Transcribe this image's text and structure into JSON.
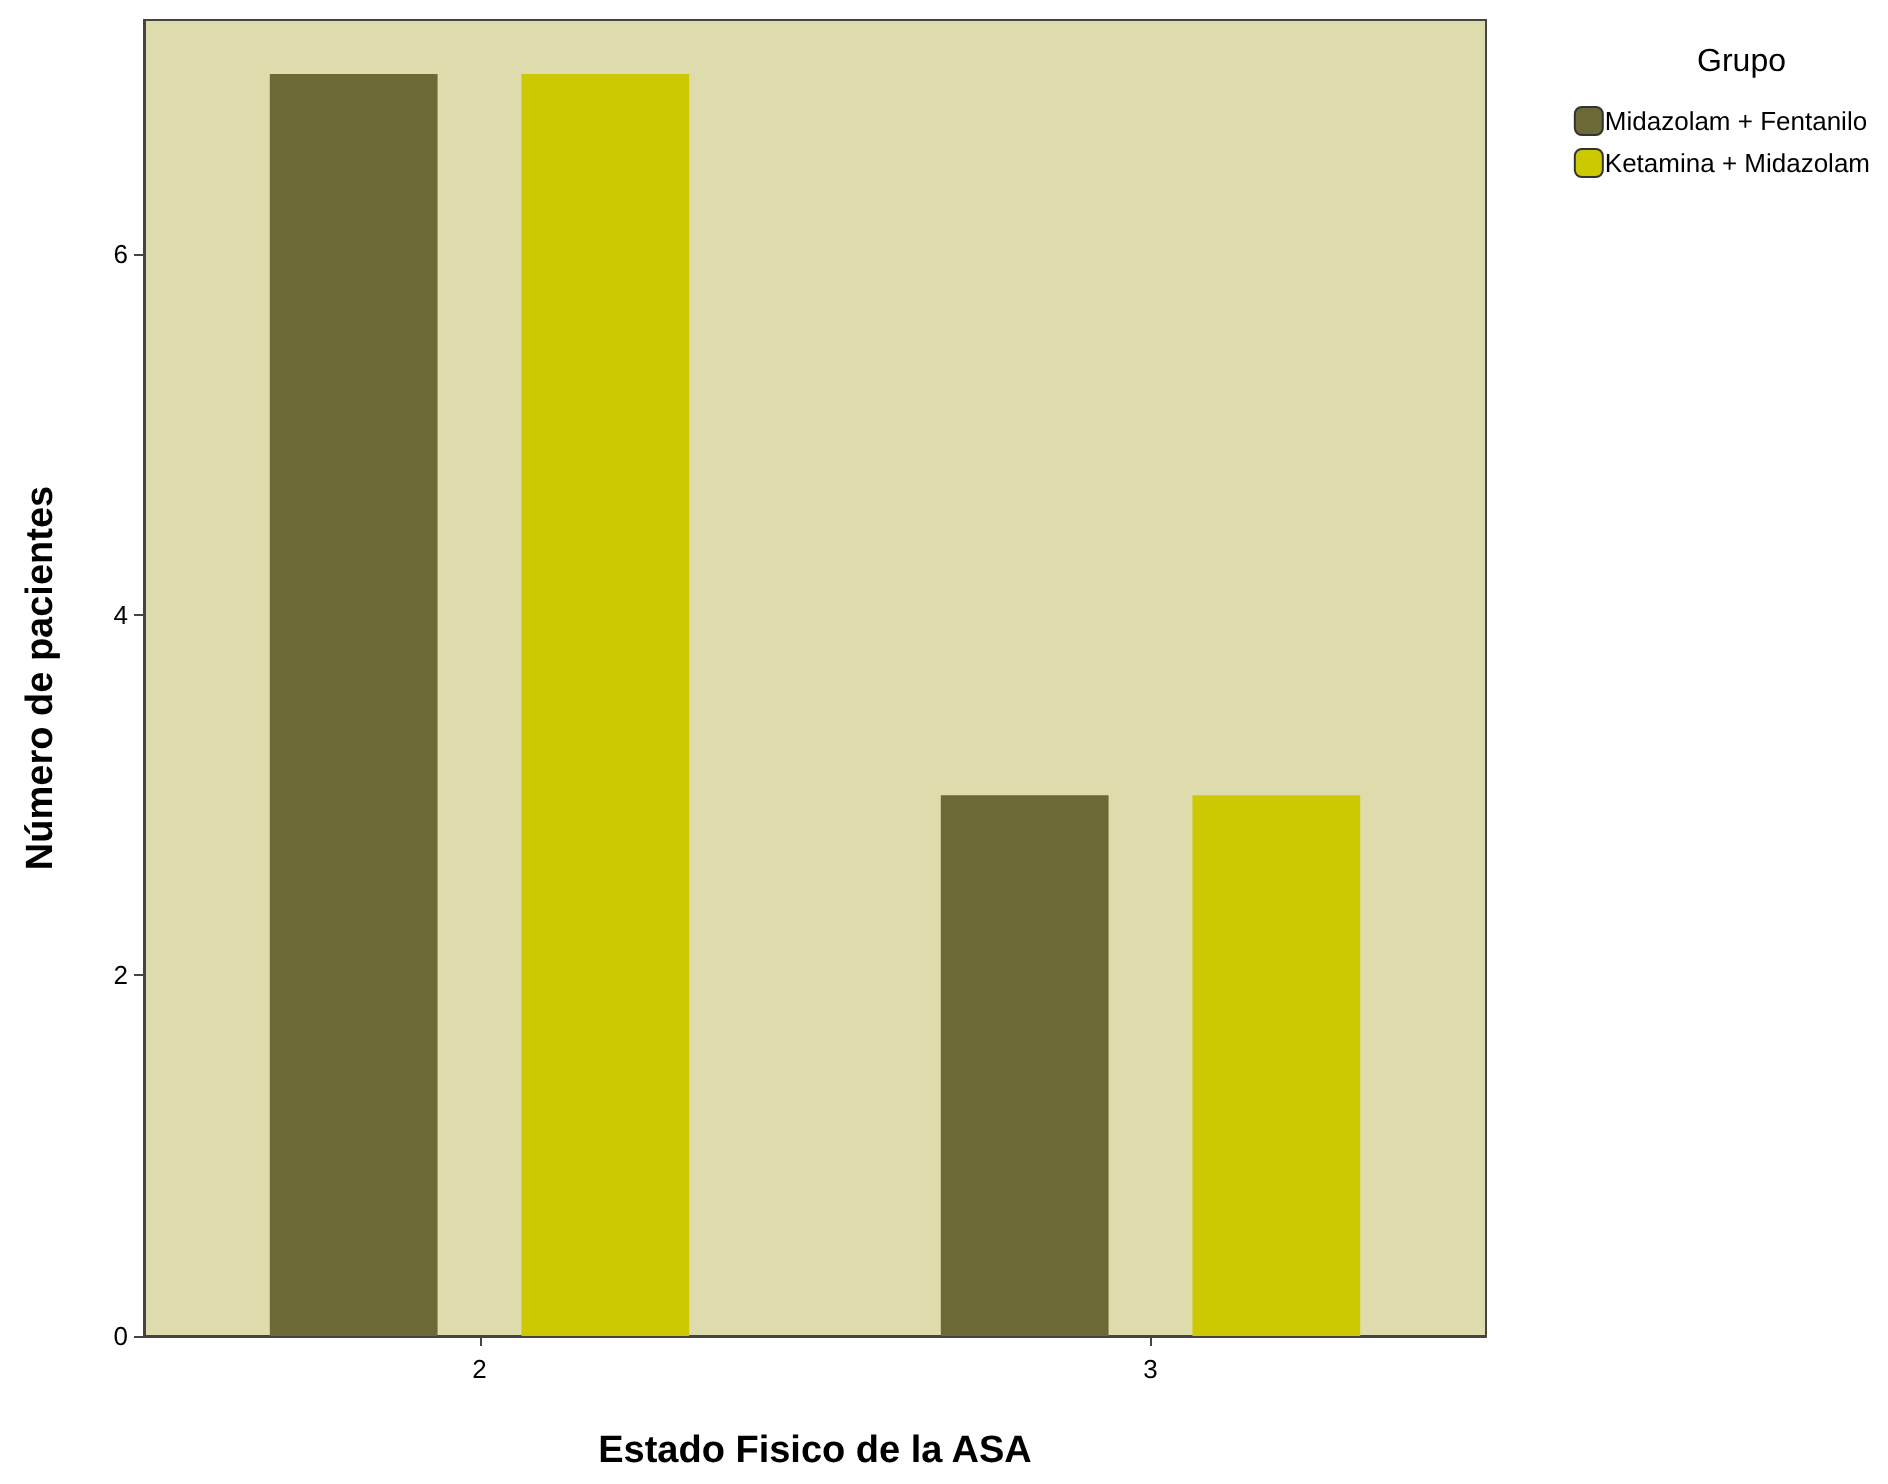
{
  "chart_data": {
    "type": "bar",
    "xlabel": "Estado Fisico de la ASA",
    "ylabel": "Número de pacientes",
    "legend_title": "Grupo",
    "categories": [
      "2",
      "3"
    ],
    "series": [
      {
        "name": "Midazolam + Fentanilo",
        "color": "#6b6935",
        "values": [
          7,
          3
        ]
      },
      {
        "name": "Ketamina + Midazolam",
        "color": "#cdc900",
        "values": [
          7,
          3
        ]
      }
    ],
    "ylim": [
      0,
      7.3
    ],
    "yticks": [
      0,
      2,
      4,
      6
    ],
    "grid": false,
    "legend": "top right"
  }
}
